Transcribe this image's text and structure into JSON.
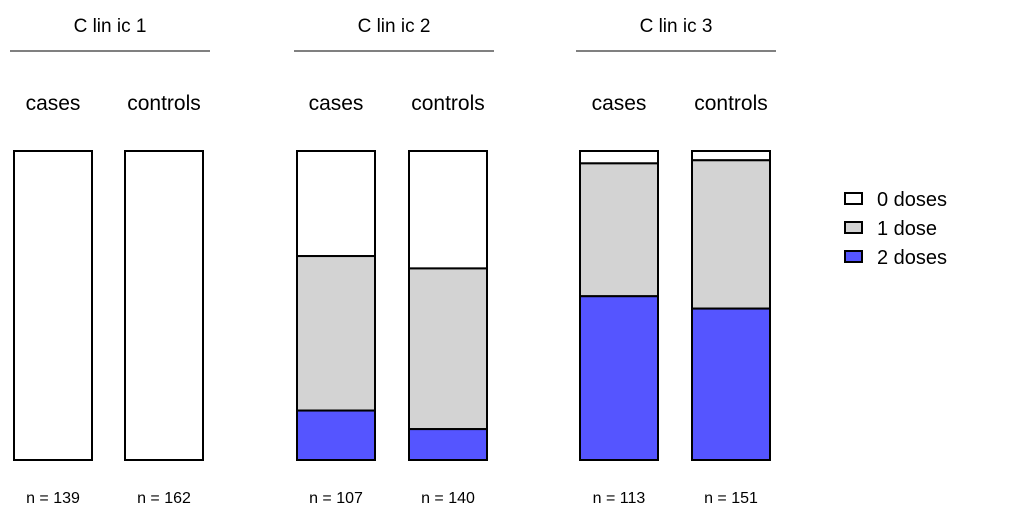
{
  "chart_data": {
    "type": "bar",
    "stacked": true,
    "normalized": true,
    "legend_position": "right",
    "grid": false,
    "categories": [
      "0 doses",
      "1 dose",
      "2 doses"
    ],
    "colors": {
      "0 doses": "#ffffff",
      "1 dose": "#d3d3d3",
      "2 doses": "#5555ff",
      "outline": "#000000"
    },
    "legend": [
      {
        "label": "0 doses",
        "color": "#ffffff"
      },
      {
        "label": "1 dose",
        "color": "#d3d3d3"
      },
      {
        "label": "2 doses",
        "color": "#5555ff"
      }
    ],
    "groups": [
      {
        "title": "C lin ic  1",
        "bars": [
          {
            "label": "cases",
            "n_label": "n = 139",
            "values": [
              1.0,
              0.0,
              0.0
            ]
          },
          {
            "label": "controls",
            "n_label": "n = 162",
            "values": [
              1.0,
              0.0,
              0.0
            ]
          }
        ]
      },
      {
        "title": "C lin ic  2",
        "bars": [
          {
            "label": "cases",
            "n_label": "n = 107",
            "values": [
              0.34,
              0.5,
              0.16
            ]
          },
          {
            "label": "controls",
            "n_label": "n = 140",
            "values": [
              0.38,
              0.52,
              0.1
            ]
          }
        ]
      },
      {
        "title": "C lin ic  3",
        "bars": [
          {
            "label": "cases",
            "n_label": "n = 113",
            "values": [
              0.04,
              0.43,
              0.53
            ]
          },
          {
            "label": "controls",
            "n_label": "n = 151",
            "values": [
              0.03,
              0.48,
              0.49
            ]
          }
        ]
      }
    ]
  }
}
